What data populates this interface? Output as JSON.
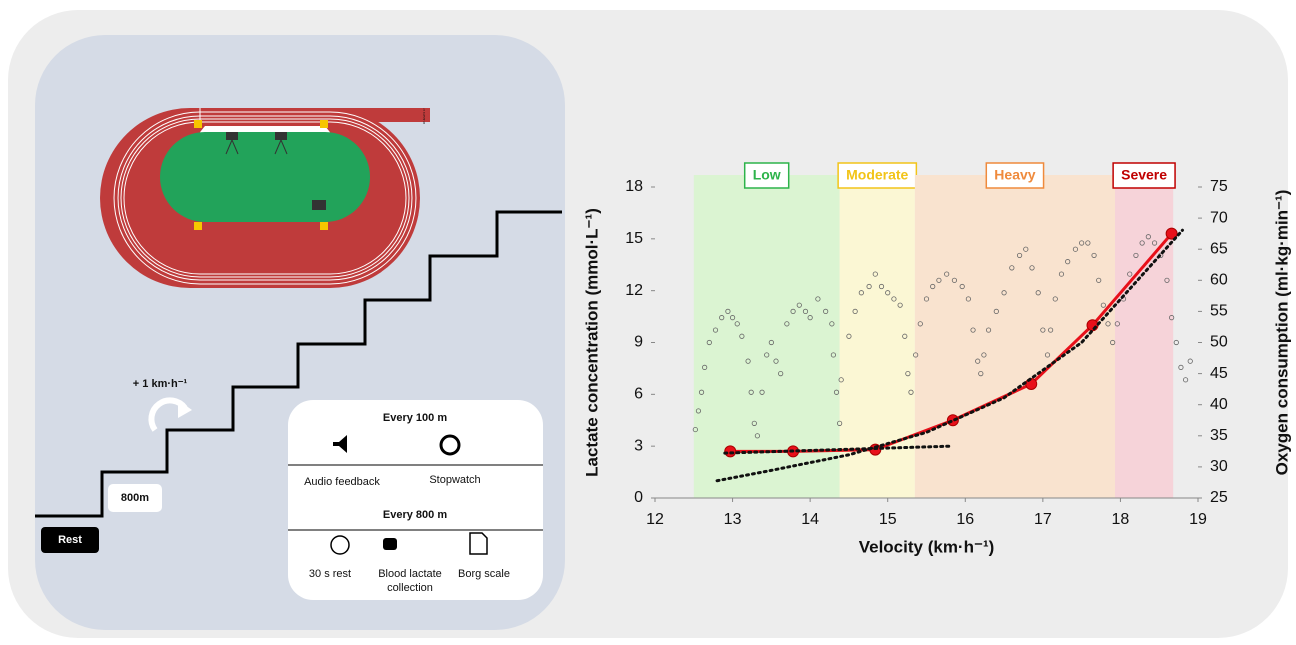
{
  "protocol": {
    "rest": "Rest",
    "first_stage": "800m",
    "increment": "+ 1 km·h⁻¹",
    "lanes": [
      "1",
      "2",
      "3",
      "4",
      "5"
    ],
    "every_100": "Every 100 m",
    "audio": "Audio feedback",
    "stopwatch": "Stopwatch",
    "every_800": "Every 800 m",
    "rest30": "30 s rest",
    "lactate": "Blood lactate collection",
    "borg": "Borg scale"
  },
  "chart_data": {
    "type": "line",
    "x_label": "Velocity (km·h⁻¹)",
    "y_label": "Lactate concentration (mmol·L⁻¹)",
    "y2_label": "Oxygen consumption (ml·kg·min⁻¹)",
    "xlim": [
      12,
      19
    ],
    "xticks": [
      12,
      13,
      14,
      15,
      16,
      17,
      18,
      19
    ],
    "ylim": [
      0,
      18
    ],
    "yticks": [
      0,
      3,
      6,
      9,
      12,
      15,
      18
    ],
    "y2lim": [
      25,
      75
    ],
    "y2ticks": [
      25,
      30,
      35,
      40,
      45,
      50,
      55,
      60,
      65,
      70,
      75
    ],
    "zones": [
      {
        "label": "Low",
        "start": 12.5,
        "end": 14.38,
        "color": "#2db34a",
        "fill": "#dbf4d2"
      },
      {
        "label": "Moderate",
        "start": 14.38,
        "end": 15.35,
        "color": "#f2c418",
        "fill": "#fbf7d4"
      },
      {
        "label": "Heavy",
        "start": 15.35,
        "end": 17.93,
        "color": "#ef8a3c",
        "fill": "#f9e3cf"
      },
      {
        "label": "Severe",
        "start": 17.93,
        "end": 18.68,
        "color": "#c00000",
        "fill": "#f6d3d9"
      }
    ],
    "series": [
      {
        "style": "scatter",
        "axis": "y2",
        "color": "#666666",
        "x": [
          12.52,
          12.56,
          12.6,
          12.64,
          12.7,
          12.78,
          12.86,
          12.94,
          13.0,
          13.06,
          13.12,
          13.2,
          13.24,
          13.28,
          13.32,
          13.38,
          13.44,
          13.5,
          13.56,
          13.62,
          13.7,
          13.78,
          13.86,
          13.94,
          14.0,
          14.1,
          14.2,
          14.28,
          14.3,
          14.34,
          14.38,
          14.4,
          14.5,
          14.58,
          14.66,
          14.76,
          14.84,
          14.92,
          15.0,
          15.08,
          15.16,
          15.22,
          15.26,
          15.3,
          15.36,
          15.42,
          15.5,
          15.58,
          15.66,
          15.76,
          15.86,
          15.96,
          16.04,
          16.1,
          16.16,
          16.2,
          16.24,
          16.3,
          16.4,
          16.5,
          16.6,
          16.7,
          16.78,
          16.86,
          16.94,
          17.0,
          17.06,
          17.1,
          17.16,
          17.24,
          17.32,
          17.42,
          17.5,
          17.58,
          17.66,
          17.72,
          17.78,
          17.84,
          17.9,
          17.96,
          18.04,
          18.12,
          18.2,
          18.28,
          18.36,
          18.44,
          18.52,
          18.6,
          18.66,
          18.72,
          18.78,
          18.84,
          18.9
        ],
        "values": [
          36,
          39,
          42,
          46,
          50,
          52,
          54,
          55,
          54,
          53,
          51,
          47,
          42,
          37,
          35,
          42,
          48,
          50,
          47,
          45,
          53,
          55,
          56,
          55,
          54,
          57,
          55,
          53,
          48,
          42,
          37,
          44,
          51,
          55,
          58,
          59,
          61,
          59,
          58,
          57,
          56,
          51,
          45,
          42,
          48,
          53,
          57,
          59,
          60,
          61,
          60,
          59,
          57,
          52,
          47,
          45,
          48,
          52,
          55,
          58,
          62,
          64,
          65,
          62,
          58,
          52,
          48,
          52,
          57,
          61,
          63,
          65,
          66,
          66,
          64,
          60,
          56,
          53,
          50,
          53,
          57,
          61,
          64,
          66,
          67,
          66,
          64,
          60,
          54,
          50,
          46,
          44,
          47
        ]
      },
      {
        "style": "dotted",
        "axis": "y",
        "color": "#111111",
        "x": [
          12.9,
          15.8
        ],
        "values": [
          2.6,
          3.0
        ]
      },
      {
        "style": "dotted",
        "axis": "y",
        "color": "#111111",
        "x": [
          12.8,
          13.5,
          14.5,
          15.5,
          16.5,
          17.5,
          18.8
        ],
        "values": [
          1.0,
          1.6,
          2.5,
          3.8,
          5.8,
          9.0,
          15.5
        ]
      },
      {
        "style": "line-markers",
        "axis": "y",
        "color": "#e8101a",
        "x": [
          12.97,
          13.78,
          14.84,
          15.84,
          16.85,
          17.64,
          18.66
        ],
        "values": [
          2.7,
          2.7,
          2.8,
          4.5,
          6.6,
          10.0,
          15.3
        ]
      }
    ]
  }
}
